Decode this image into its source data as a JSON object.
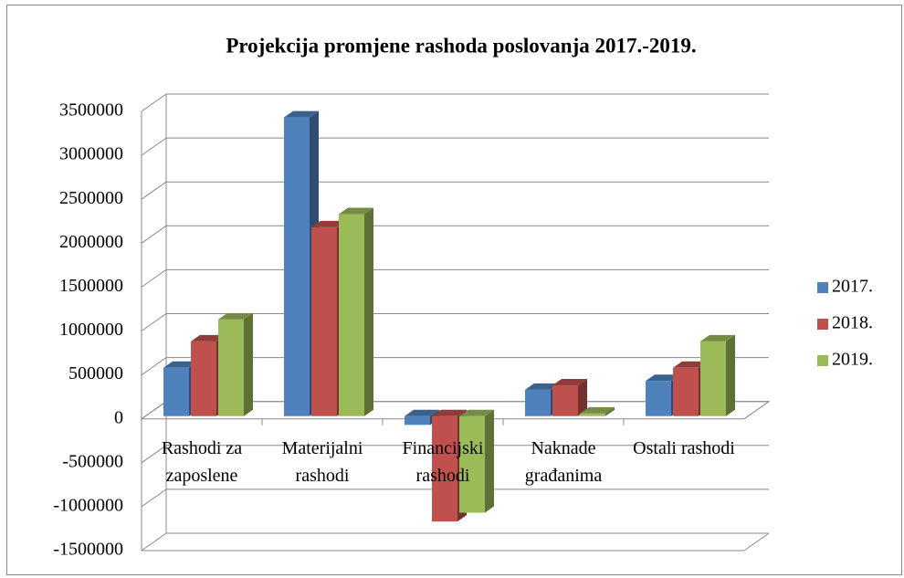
{
  "chart_data": {
    "type": "bar3d",
    "title": "Projekcija promjene rashoda poslovanja 2017.-2019.",
    "categories": [
      "Rashodi za zaposlene",
      "Materijalni rashodi",
      "Financijski rashodi",
      "Naknade građanima",
      "Ostali rashodi"
    ],
    "series": [
      {
        "name": "2017.",
        "color": "#4f81bd",
        "values": [
          550000,
          3400000,
          -100000,
          300000,
          400000
        ]
      },
      {
        "name": "2018.",
        "color": "#c0504d",
        "values": [
          850000,
          2150000,
          -1200000,
          350000,
          550000
        ]
      },
      {
        "name": "2019.",
        "color": "#9bbb59",
        "values": [
          1100000,
          2300000,
          -1100000,
          30000,
          850000
        ]
      }
    ],
    "ylim": [
      -1500000,
      3500000
    ],
    "yticks": [
      -1500000,
      -1000000,
      -500000,
      0,
      500000,
      1000000,
      1500000,
      2000000,
      2500000,
      3000000,
      3500000
    ],
    "grid": true,
    "legend": "right"
  }
}
